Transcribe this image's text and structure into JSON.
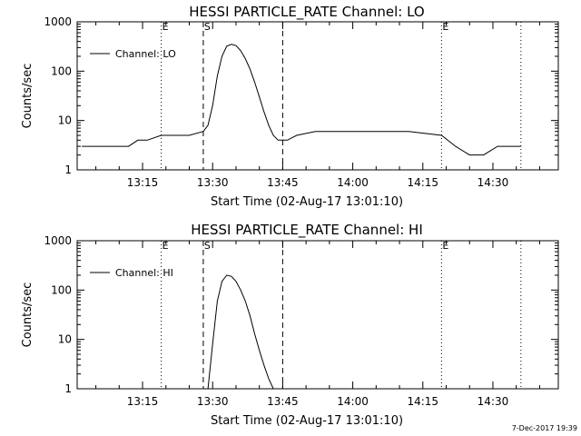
{
  "footer": "7-Dec-2017 19:39",
  "chart_data": [
    {
      "type": "line",
      "title": "HESSI PARTICLE_RATE Channel: LO",
      "xlabel": "Start Time (02-Aug-17 13:01:10)",
      "ylabel": "Counts/sec",
      "yscale": "log",
      "ylim": [
        1,
        1000
      ],
      "xlim": [
        "13:01",
        "14:44"
      ],
      "x_ticks": [
        "13:15",
        "13:30",
        "13:45",
        "14:00",
        "14:15",
        "14:30"
      ],
      "y_ticks": [
        "1",
        "10",
        "100",
        "1000"
      ],
      "legend": "Channel: LO",
      "legend_position": "top-left",
      "markers": [
        {
          "label": "E",
          "time": "13:19",
          "style": "dotted"
        },
        {
          "label": "S",
          "time": "13:28",
          "style": "dashed"
        },
        {
          "label": "",
          "time": "13:45",
          "style": "dashed"
        },
        {
          "label": "E",
          "time": "14:19",
          "style": "dotted"
        },
        {
          "label": "",
          "time": "14:36",
          "style": "dotted"
        }
      ],
      "series": [
        {
          "name": "Channel: LO",
          "x": [
            "13:02",
            "13:05",
            "13:08",
            "13:10",
            "13:12",
            "13:14",
            "13:16",
            "13:19",
            "13:22",
            "13:25",
            "13:28",
            "13:29",
            "13:30",
            "13:31",
            "13:32",
            "13:33",
            "13:34",
            "13:35",
            "13:36",
            "13:37",
            "13:38",
            "13:39",
            "13:40",
            "13:41",
            "13:42",
            "13:43",
            "13:44",
            "13:46",
            "13:48",
            "13:52",
            "13:58",
            "14:05",
            "14:12",
            "14:19",
            "14:22",
            "14:25",
            "14:28",
            "14:31",
            "14:34",
            "14:36"
          ],
          "y": [
            3,
            3,
            3,
            3,
            3,
            4,
            4,
            5,
            5,
            5,
            6,
            8,
            20,
            80,
            200,
            320,
            350,
            330,
            260,
            180,
            110,
            60,
            30,
            15,
            8,
            5,
            4,
            4,
            5,
            6,
            6,
            6,
            6,
            5,
            3,
            2,
            2,
            3,
            3,
            3
          ]
        }
      ]
    },
    {
      "type": "line",
      "title": "HESSI PARTICLE_RATE Channel: HI",
      "xlabel": "Start Time (02-Aug-17 13:01:10)",
      "ylabel": "Counts/sec",
      "yscale": "log",
      "ylim": [
        1,
        1000
      ],
      "xlim": [
        "13:01",
        "14:44"
      ],
      "x_ticks": [
        "13:15",
        "13:30",
        "13:45",
        "14:00",
        "14:15",
        "14:30"
      ],
      "y_ticks": [
        "1",
        "10",
        "100",
        "1000"
      ],
      "legend": "Channel: HI",
      "legend_position": "top-left",
      "markers": [
        {
          "label": "E",
          "time": "13:19",
          "style": "dotted"
        },
        {
          "label": "S",
          "time": "13:28",
          "style": "dashed"
        },
        {
          "label": "",
          "time": "13:45",
          "style": "dashed"
        },
        {
          "label": "E",
          "time": "14:19",
          "style": "dotted"
        },
        {
          "label": "",
          "time": "14:36",
          "style": "dotted"
        }
      ],
      "series": [
        {
          "name": "Channel: HI",
          "x": [
            "13:29",
            "13:30",
            "13:31",
            "13:32",
            "13:33",
            "13:34",
            "13:35",
            "13:36",
            "13:37",
            "13:38",
            "13:39",
            "13:40",
            "13:41",
            "13:42",
            "13:43"
          ],
          "y": [
            1,
            8,
            60,
            150,
            200,
            190,
            150,
            100,
            60,
            30,
            13,
            6,
            3,
            1.6,
            1
          ]
        }
      ]
    }
  ]
}
